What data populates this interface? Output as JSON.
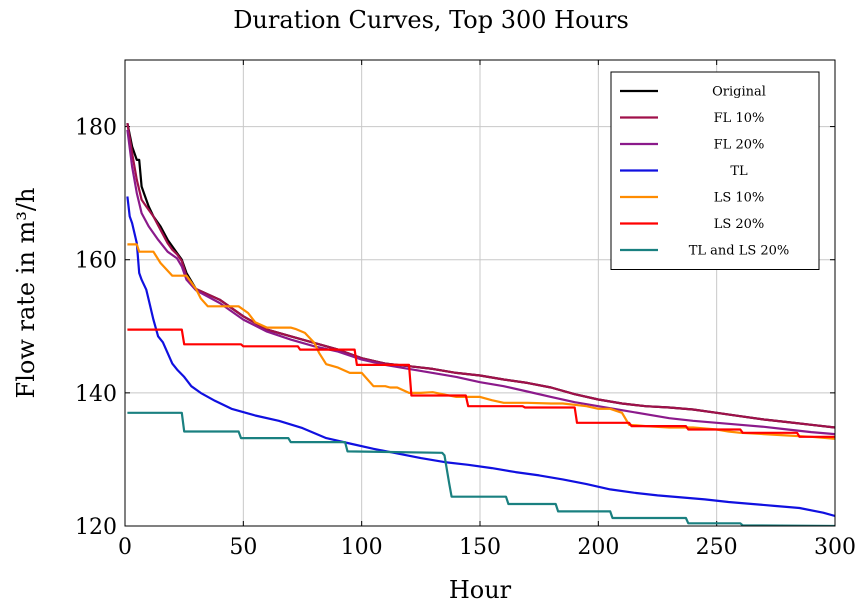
{
  "chart_data": {
    "type": "line",
    "title": "Duration Curves, Top 300 Hours",
    "xlabel": "Hour",
    "ylabel": "Flow rate in m³/h",
    "xlim": [
      0,
      300
    ],
    "ylim": [
      120,
      190
    ],
    "xticks": [
      0,
      50,
      100,
      150,
      200,
      250,
      300
    ],
    "yticks": [
      120,
      140,
      160,
      180
    ],
    "grid": true,
    "legend_position": "top-right",
    "series": [
      {
        "name": "Original",
        "color": "#000000",
        "step": false,
        "x": [
          1,
          3,
          5,
          6,
          7,
          8,
          10,
          12,
          15,
          18,
          20,
          22,
          24,
          26,
          30,
          40,
          50,
          60,
          70,
          80,
          90,
          100,
          110,
          120,
          130,
          140,
          150,
          160,
          170,
          180,
          190,
          200,
          210,
          220,
          230,
          240,
          250,
          260,
          270,
          280,
          290,
          300
        ],
        "y": [
          180.5,
          177,
          175,
          175,
          171,
          170,
          168,
          166.5,
          165,
          163,
          162,
          161,
          160,
          158,
          155.6,
          154,
          151.5,
          149.5,
          148.5,
          147.5,
          146.5,
          145.2,
          144.4,
          144,
          143.6,
          143,
          142.6,
          142,
          141.5,
          140.8,
          139.8,
          139,
          138.4,
          138,
          137.8,
          137.5,
          137,
          136.5,
          136,
          135.6,
          135.2,
          134.8
        ]
      },
      {
        "name": "FL 10%",
        "color": "#a0104a",
        "step": false,
        "x": [
          1,
          3,
          5,
          7,
          9,
          12,
          15,
          18,
          20,
          22,
          24,
          26,
          30,
          40,
          50,
          60,
          70,
          80,
          90,
          100,
          110,
          120,
          130,
          140,
          150,
          160,
          170,
          180,
          190,
          200,
          210,
          220,
          230,
          240,
          250,
          260,
          270,
          280,
          290,
          300
        ],
        "y": [
          180.5,
          176,
          172,
          169,
          168,
          166.5,
          164.5,
          162.5,
          161.5,
          160.8,
          159.8,
          157.5,
          155.6,
          154,
          151.5,
          149.5,
          148.5,
          147.5,
          146.5,
          145.2,
          144.4,
          144,
          143.6,
          143,
          142.6,
          142,
          141.5,
          140.8,
          139.8,
          139,
          138.4,
          138,
          137.8,
          137.5,
          137,
          136.5,
          136,
          135.6,
          135.2,
          134.8
        ]
      },
      {
        "name": "FL 20%",
        "color": "#8b1a8b",
        "step": false,
        "x": [
          1,
          3,
          5,
          7,
          10,
          14,
          18,
          22,
          24,
          26,
          30,
          40,
          50,
          60,
          70,
          80,
          90,
          100,
          110,
          120,
          130,
          140,
          150,
          160,
          170,
          180,
          190,
          200,
          210,
          220,
          230,
          240,
          250,
          260,
          270,
          280,
          290,
          300
        ],
        "y": [
          179.5,
          174,
          170,
          167,
          165,
          163,
          161.2,
          160.2,
          159,
          157,
          155.4,
          153.5,
          151,
          149.2,
          148,
          147,
          146.2,
          145,
          144.2,
          143.6,
          143,
          142.4,
          141.6,
          141,
          140.2,
          139.4,
          138.6,
          138,
          137.4,
          136.8,
          136.2,
          135.8,
          135.5,
          135.2,
          134.9,
          134.5,
          134.1,
          133.8
        ]
      },
      {
        "name": "TL",
        "color": "#1010e0",
        "step": false,
        "x": [
          1,
          2,
          3,
          5,
          6,
          7,
          9,
          10,
          12,
          14,
          16,
          18,
          20,
          22,
          25,
          28,
          32,
          38,
          45,
          55,
          65,
          75,
          85,
          95,
          105,
          115,
          125,
          135,
          145,
          155,
          165,
          175,
          185,
          195,
          205,
          215,
          225,
          235,
          245,
          255,
          265,
          275,
          285,
          295,
          300
        ],
        "y": [
          169.5,
          166.5,
          165.5,
          162.5,
          158,
          157,
          155.5,
          154,
          151,
          148.5,
          147.6,
          146,
          144.4,
          143.5,
          142.4,
          141,
          140,
          138.8,
          137.6,
          136.6,
          135.8,
          134.7,
          133.2,
          132.4,
          131.6,
          130.9,
          130.2,
          129.6,
          129.2,
          128.7,
          128.1,
          127.6,
          127,
          126.3,
          125.5,
          125,
          124.6,
          124.3,
          124,
          123.6,
          123.3,
          123,
          122.7,
          122,
          121.5
        ]
      },
      {
        "name": "LS 10%",
        "color": "#ff8c00",
        "step": false,
        "x": [
          1,
          5,
          6,
          12,
          15,
          20,
          26,
          30,
          32,
          35,
          40,
          48,
          52,
          55,
          60,
          70,
          72,
          76,
          80,
          82,
          85,
          90,
          95,
          100,
          105,
          110,
          112,
          115,
          120,
          125,
          130,
          140,
          145,
          150,
          155,
          160,
          170,
          180,
          185,
          190,
          195,
          200,
          205,
          210,
          213,
          220,
          230,
          240,
          250,
          255,
          260,
          270,
          280,
          290,
          300
        ],
        "y": [
          162.3,
          162.3,
          161.2,
          161.2,
          159.5,
          157.6,
          157.6,
          155.6,
          154.2,
          153,
          153,
          153,
          152,
          150.6,
          149.8,
          149.8,
          149.6,
          149,
          147.5,
          146,
          144.3,
          143.8,
          143,
          143,
          141,
          141,
          140.8,
          140.8,
          140,
          140,
          140.1,
          139.4,
          139.4,
          139.4,
          138.9,
          138.5,
          138.5,
          138.4,
          138.4,
          138.2,
          138,
          137.6,
          137.6,
          137,
          135.2,
          135,
          134.8,
          134.8,
          134.5,
          134.2,
          134,
          133.8,
          133.6,
          133.4,
          133.1
        ]
      },
      {
        "name": "LS 20%",
        "color": "#ff0000",
        "step": false,
        "x": [
          1,
          24,
          25,
          49,
          50,
          73,
          74,
          97,
          98,
          120,
          121,
          144,
          145,
          168,
          169,
          190,
          191,
          213,
          214,
          237,
          238,
          260,
          261,
          284,
          285,
          300
        ],
        "y": [
          149.5,
          149.5,
          147.3,
          147.3,
          147,
          147,
          146.5,
          146.5,
          144.2,
          144.2,
          139.6,
          139.6,
          138,
          138,
          137.8,
          137.8,
          135.5,
          135.5,
          135,
          135,
          134.5,
          134.5,
          134,
          134,
          133.4,
          133.4
        ]
      },
      {
        "name": "TL and LS 20%",
        "color": "#1a8080",
        "step": false,
        "x": [
          1,
          24,
          25,
          48,
          49,
          69,
          70,
          93,
          94,
          134,
          135,
          137,
          138,
          161,
          162,
          182,
          183,
          205,
          206,
          237,
          238,
          260,
          261,
          300
        ],
        "y": [
          137,
          137,
          134.2,
          134.2,
          133.2,
          133.2,
          132.6,
          132.6,
          131.2,
          131,
          130.6,
          126.4,
          124.4,
          124.4,
          123.3,
          123.3,
          122.2,
          122.2,
          121.2,
          121.2,
          120.4,
          120.4,
          120.1,
          120
        ]
      }
    ]
  }
}
